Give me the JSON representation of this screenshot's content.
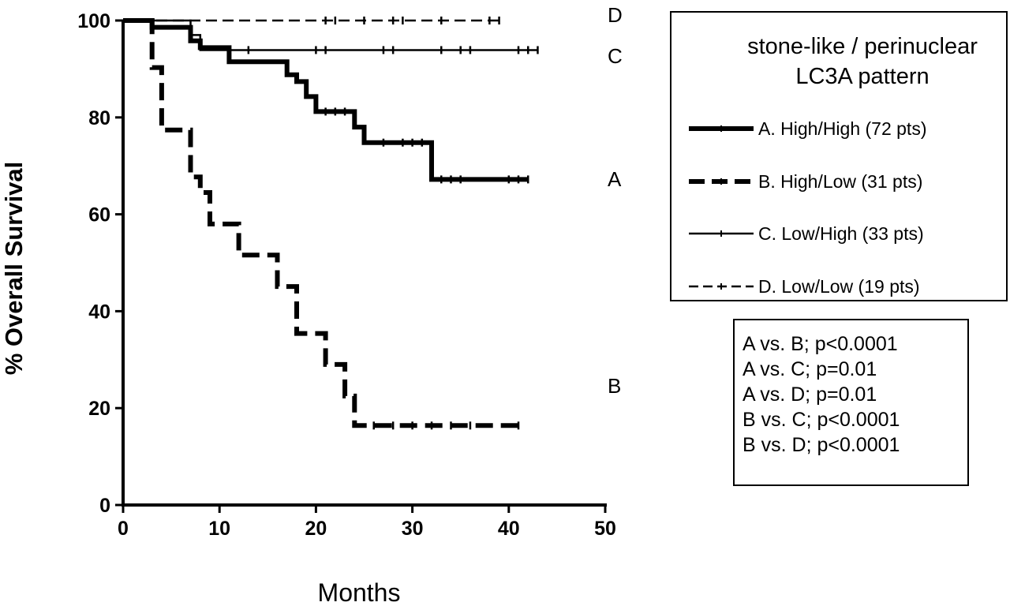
{
  "chart_data": {
    "type": "line",
    "subtype": "kaplan-meier",
    "xlabel": "Months",
    "ylabel": "% Overall Survival",
    "xlim": [
      0,
      50
    ],
    "ylim": [
      0,
      100
    ],
    "xticks": [
      0,
      10,
      20,
      30,
      40,
      50
    ],
    "yticks": [
      0,
      20,
      40,
      60,
      80,
      100
    ],
    "grid": false,
    "legend_title": [
      "stone-like / perinuclear",
      "LC3A pattern"
    ],
    "legend_position": "top-right",
    "series": [
      {
        "name": "A. High/High (72 pts)",
        "end_label": "A",
        "line_style": "thick-solid",
        "steps": [
          [
            0,
            100
          ],
          [
            3,
            100
          ],
          [
            3,
            98.6
          ],
          [
            7,
            98.6
          ],
          [
            7,
            95.8
          ],
          [
            8,
            95.8
          ],
          [
            8,
            94.4
          ],
          [
            11,
            94.4
          ],
          [
            11,
            91.5
          ],
          [
            17,
            91.5
          ],
          [
            17,
            88.8
          ],
          [
            18,
            88.8
          ],
          [
            18,
            87.4
          ],
          [
            19,
            87.4
          ],
          [
            19,
            84.3
          ],
          [
            20,
            84.3
          ],
          [
            20,
            81.2
          ],
          [
            24,
            81.2
          ],
          [
            24,
            78
          ],
          [
            25,
            78
          ],
          [
            25,
            74.8
          ],
          [
            32,
            74.8
          ],
          [
            32,
            67.2
          ],
          [
            42,
            67.2
          ]
        ],
        "censored": [
          [
            21,
            81.2
          ],
          [
            22,
            81.2
          ],
          [
            23,
            81.2
          ],
          [
            27,
            74.8
          ],
          [
            29,
            74.8
          ],
          [
            30,
            74.8
          ],
          [
            31,
            74.8
          ],
          [
            33,
            67.2
          ],
          [
            34,
            67.2
          ],
          [
            35,
            67.2
          ],
          [
            40,
            67.2
          ],
          [
            41,
            67.2
          ],
          [
            42,
            67.2
          ]
        ]
      },
      {
        "name": "B. High/Low (31 pts)",
        "end_label": "B",
        "line_style": "thick-dashed",
        "steps": [
          [
            0,
            100
          ],
          [
            3,
            100
          ],
          [
            3,
            90.3
          ],
          [
            4,
            90.3
          ],
          [
            4,
            77.4
          ],
          [
            7,
            77.4
          ],
          [
            7,
            67.7
          ],
          [
            8,
            67.7
          ],
          [
            8,
            64.5
          ],
          [
            9,
            64.5
          ],
          [
            9,
            58
          ],
          [
            12,
            58
          ],
          [
            12,
            51.6
          ],
          [
            16,
            51.6
          ],
          [
            16,
            45.1
          ],
          [
            18,
            45.1
          ],
          [
            18,
            35.4
          ],
          [
            21,
            35.4
          ],
          [
            21,
            29
          ],
          [
            23,
            29
          ],
          [
            23,
            22.5
          ],
          [
            24,
            22.5
          ],
          [
            24,
            16.4
          ],
          [
            41,
            16.4
          ]
        ],
        "censored": [
          [
            26,
            16.4
          ],
          [
            28,
            16.4
          ],
          [
            30,
            16.4
          ],
          [
            32,
            16.4
          ],
          [
            34,
            16.4
          ],
          [
            36,
            16.4
          ],
          [
            41,
            16.4
          ]
        ]
      },
      {
        "name": "C. Low/High (33 pts)",
        "end_label": "C",
        "line_style": "thin-solid",
        "steps": [
          [
            0,
            100
          ],
          [
            7,
            100
          ],
          [
            7,
            97
          ],
          [
            8,
            97
          ],
          [
            8,
            93.9
          ],
          [
            43,
            93.9
          ]
        ],
        "censored": [
          [
            13,
            93.9
          ],
          [
            20,
            93.9
          ],
          [
            21,
            93.9
          ],
          [
            27,
            93.9
          ],
          [
            28,
            93.9
          ],
          [
            33,
            93.9
          ],
          [
            35,
            93.9
          ],
          [
            36,
            93.9
          ],
          [
            41,
            93.9
          ],
          [
            42,
            93.9
          ],
          [
            43,
            93.9
          ]
        ]
      },
      {
        "name": "D. Low/Low (19 pts)",
        "end_label": "D",
        "line_style": "thin-dashed",
        "steps": [
          [
            0,
            100
          ],
          [
            39,
            100
          ]
        ],
        "censored": [
          [
            21,
            100
          ],
          [
            22,
            100
          ],
          [
            25,
            100
          ],
          [
            28,
            100
          ],
          [
            29,
            100
          ],
          [
            33,
            100
          ],
          [
            38,
            100
          ],
          [
            39,
            100
          ]
        ]
      }
    ],
    "annotations": [
      "A vs. B; p<0.0001",
      "A vs. C; p=0.01",
      "A vs. D; p=0.01",
      "B vs. C; p<0.0001",
      "B vs. D; p<0.0001"
    ]
  }
}
